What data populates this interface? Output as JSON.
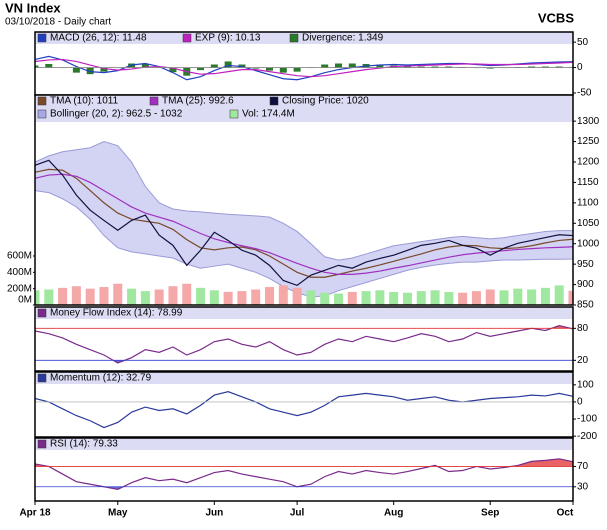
{
  "chart_data": {
    "type": "stock",
    "title": "VN Index",
    "subtitle": "03/10/2018 - Daily chart",
    "source": "VCBS",
    "categories": [
      "Apr 18",
      null,
      null,
      null,
      null,
      null,
      "May",
      null,
      null,
      null,
      null,
      null,
      null,
      "Jun",
      null,
      null,
      null,
      null,
      null,
      "Jul",
      null,
      null,
      null,
      null,
      null,
      null,
      "Aug",
      null,
      null,
      null,
      null,
      null,
      null,
      "Sep",
      null,
      null,
      null,
      null,
      null,
      "Oct"
    ],
    "panels": [
      {
        "ylim": [
          -54,
          70
        ],
        "yticks": [
          50,
          0,
          -50
        ],
        "lines": [
          {
            "value": 0,
            "color": "#888888"
          }
        ],
        "series": [
          {
            "name": "MACD (26, 12): 11.48",
            "kind": "line",
            "color": "#2040c0",
            "values": [
              16,
              22,
              15,
              2,
              -8,
              -10,
              -6,
              5,
              8,
              2,
              -10,
              -24,
              -18,
              -6,
              4,
              2,
              -6,
              -14,
              -22,
              -24,
              -18,
              -10,
              -4,
              0,
              3,
              5,
              6,
              5,
              6,
              7,
              8,
              8,
              6,
              4,
              5,
              7,
              9,
              10,
              11,
              11.48
            ]
          },
          {
            "name": "EXP (9): 10.13",
            "kind": "line",
            "color": "#c020c0",
            "values": [
              12,
              15,
              16,
              12,
              5,
              -2,
              -5,
              -3,
              1,
              2,
              -1,
              -8,
              -13,
              -12,
              -8,
              -4,
              -4,
              -8,
              -12,
              -16,
              -18,
              -16,
              -12,
              -8,
              -4,
              -1,
              2,
              3,
              4,
              5,
              6,
              7,
              7,
              6,
              6,
              6,
              7,
              8,
              9,
              10.13
            ]
          },
          {
            "name": "Divergence: 1.349",
            "kind": "bar",
            "color": "#2a7a2a",
            "values": [
              4,
              7,
              -1,
              -10,
              -13,
              -8,
              -1,
              8,
              7,
              0,
              -9,
              -16,
              -5,
              6,
              12,
              6,
              -2,
              -6,
              -10,
              -8,
              0,
              6,
              8,
              8,
              7,
              6,
              4,
              2,
              2,
              2,
              2,
              1,
              -1,
              -2,
              -1,
              1,
              2,
              2,
              2,
              1.349
            ]
          }
        ]
      },
      {
        "ylim": [
          850,
          1364
        ],
        "yticks": [
          1300,
          1250,
          1200,
          1150,
          1100,
          1050,
          1000,
          950,
          900,
          850
        ],
        "y2lim": [
          0,
          2570000000
        ],
        "y2ticks": [
          {
            "value": 600000000,
            "label": "600M"
          },
          {
            "value": 400000000,
            "label": "400M"
          },
          {
            "value": 200000000,
            "label": "200M"
          },
          {
            "value": 0,
            "label": "0M"
          }
        ],
        "series": [
          {
            "name": "TMA (10): 1011",
            "kind": "line",
            "color": "#7a4a2a",
            "values": [
              1175,
              1182,
              1180,
              1160,
              1130,
              1100,
              1075,
              1060,
              1055,
              1050,
              1035,
              1010,
              990,
              985,
              990,
              992,
              985,
              970,
              950,
              930,
              918,
              918,
              925,
              933,
              940,
              948,
              957,
              966,
              975,
              985,
              992,
              996,
              995,
              990,
              988,
              990,
              995,
              1002,
              1008,
              1011
            ]
          },
          {
            "name": "TMA (25): 992.6",
            "kind": "line",
            "color": "#a030c0",
            "values": [
              1160,
              1168,
              1170,
              1165,
              1150,
              1130,
              1110,
              1090,
              1075,
              1065,
              1055,
              1040,
              1025,
              1012,
              1003,
              995,
              988,
              978,
              965,
              952,
              940,
              930,
              925,
              925,
              928,
              933,
              940,
              946,
              953,
              960,
              967,
              973,
              977,
              980,
              983,
              986,
              988,
              990,
              991,
              992.6
            ]
          },
          {
            "name": "Closing Price: 1020",
            "kind": "line",
            "color": "#101040",
            "values": [
              1192,
              1204,
              1168,
              1119,
              1082,
              1057,
              1033,
              1057,
              1070,
              1021,
              996,
              947,
              984,
              1028,
              1008,
              984,
              972,
              947,
              910,
              898,
              923,
              935,
              947,
              940,
              955,
              964,
              972,
              984,
              996,
              1001,
              1008,
              996,
              989,
              972,
              989,
              1001,
              1008,
              1015,
              1022,
              1020
            ]
          },
          {
            "name": "Bollinger (20, 2): 962.5 - 1032",
            "kind": "band",
            "color": "#c8c8f0",
            "values": [
              1200,
              1215,
              1225,
              1230,
              1235,
              1250,
              1240,
              1200,
              1140,
              1100,
              1085,
              1080,
              1078,
              1075,
              1072,
              1070,
              1068,
              1065,
              1050,
              1030,
              1000,
              968,
              960,
              965,
              975,
              985,
              995,
              1000,
              1005,
              1010,
              1015,
              1018,
              1015,
              1012,
              1015,
              1020,
              1025,
              1030,
              1032,
              1032
            ],
            "lower": [
              1130,
              1125,
              1110,
              1090,
              1060,
              1020,
              990,
              980,
              975,
              970,
              965,
              950,
              940,
              945,
              950,
              940,
              930,
              915,
              895,
              880,
              870,
              872,
              885,
              895,
              905,
              915,
              925,
              935,
              942,
              948,
              952,
              955,
              955,
              958,
              960,
              960,
              961,
              962,
              962,
              962.5
            ]
          },
          {
            "name": "Vol: 174.4M",
            "kind": "bar",
            "axis": "y2",
            "color": "#a0e8a0",
            "down_color": "#f4a8a8",
            "values": [
              180000000,
              190000000,
              210000000,
              230000000,
              200000000,
              220000000,
              260000000,
              200000000,
              170000000,
              190000000,
              230000000,
              260000000,
              210000000,
              180000000,
              160000000,
              170000000,
              190000000,
              220000000,
              240000000,
              210000000,
              180000000,
              150000000,
              140000000,
              160000000,
              170000000,
              180000000,
              160000000,
              150000000,
              170000000,
              180000000,
              160000000,
              150000000,
              170000000,
              190000000,
              180000000,
              200000000,
              190000000,
              210000000,
              240000000,
              174400000
            ]
          }
        ]
      },
      {
        "ylim": [
          0,
          120
        ],
        "yticks": [
          80,
          20
        ],
        "lines": [
          {
            "value": 80,
            "color": "#e03030",
            "fill": "above"
          },
          {
            "value": 20,
            "color": "#3040d0",
            "fill": "below"
          }
        ],
        "series": [
          {
            "name": "Money Flow Index (14): 78.99",
            "kind": "line",
            "color": "#7a2a8a",
            "values": [
              75,
              70,
              62,
              50,
              40,
              30,
              15,
              25,
              40,
              35,
              45,
              30,
              40,
              55,
              60,
              50,
              45,
              55,
              40,
              30,
              35,
              50,
              60,
              55,
              65,
              60,
              55,
              62,
              70,
              65,
              55,
              60,
              72,
              65,
              70,
              75,
              80,
              76,
              85,
              78.99
            ]
          }
        ]
      },
      {
        "ylim": [
          -205,
          175
        ],
        "yticks": [
          100,
          0,
          -100,
          -200
        ],
        "lines": [
          {
            "value": 0,
            "color": "#bbbbbb"
          }
        ],
        "series": [
          {
            "name": "Momentum (12): 32.79",
            "kind": "line",
            "color": "#2a3a9a",
            "values": [
              20,
              0,
              -40,
              -80,
              -110,
              -150,
              -120,
              -60,
              -30,
              -50,
              -40,
              -70,
              -20,
              40,
              60,
              30,
              0,
              -40,
              -60,
              -80,
              -60,
              -20,
              30,
              40,
              50,
              40,
              30,
              10,
              20,
              30,
              10,
              0,
              10,
              20,
              25,
              30,
              40,
              35,
              50,
              32.79
            ]
          }
        ]
      },
      {
        "ylim": [
          2,
          126
        ],
        "yticks": [
          70,
          30
        ],
        "lines": [
          {
            "value": 70,
            "color": "#e03030",
            "fill": "above"
          },
          {
            "value": 30,
            "color": "#3040d0",
            "fill": "below"
          }
        ],
        "series": [
          {
            "name": "RSI (14): 79.33",
            "kind": "line",
            "color": "#7a2a8a",
            "values": [
              75,
              70,
              55,
              40,
              35,
              30,
              25,
              38,
              48,
              42,
              45,
              38,
              48,
              58,
              62,
              55,
              50,
              45,
              40,
              30,
              35,
              50,
              60,
              55,
              62,
              58,
              55,
              60,
              66,
              72,
              60,
              62,
              70,
              65,
              68,
              72,
              80,
              82,
              85,
              79.33
            ]
          }
        ]
      }
    ]
  }
}
